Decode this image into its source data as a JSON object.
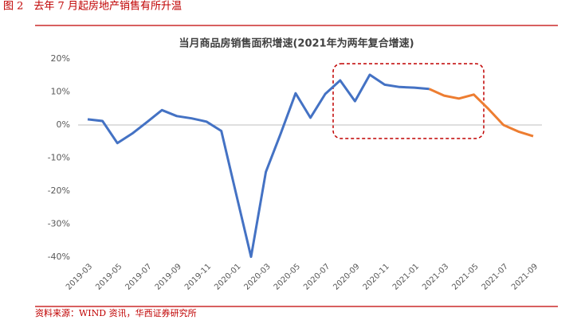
{
  "header": "图 2　去年 7 月起房地产销售有所升温",
  "source": "资料来源：WIND 资讯，华西证券研究所",
  "chart_data": {
    "type": "line",
    "title": "当月商品房销售面积增速(2021年为两年复合增速)",
    "categories": [
      "2019-03",
      null,
      "2019-05",
      null,
      "2019-07",
      null,
      "2019-09",
      null,
      "2019-11",
      null,
      "2020-01",
      null,
      "2020-03",
      null,
      "2020-05",
      null,
      "2020-07",
      null,
      "2020-09",
      null,
      "2020-11",
      null,
      "2021-01",
      null,
      "2021-03",
      null,
      "2021-05",
      null,
      "2021-07",
      null,
      "2021-09"
    ],
    "series": [
      {
        "color": "#4472c4",
        "values": [
          1.7,
          1.2,
          -5.5,
          -2.6,
          0.9,
          4.5,
          2.7,
          2.0,
          1.0,
          -1.8,
          -20.9,
          -39.9,
          -14.2,
          -2.6,
          9.6,
          2.2,
          9.4,
          13.5,
          7.2,
          15.2,
          12.2,
          11.5,
          11.3,
          10.9,
          null,
          null,
          null,
          null,
          null,
          null,
          null
        ]
      },
      {
        "color": "#ed7d31",
        "values": [
          null,
          null,
          null,
          null,
          null,
          null,
          null,
          null,
          null,
          null,
          null,
          null,
          null,
          null,
          null,
          null,
          null,
          null,
          null,
          null,
          null,
          null,
          null,
          10.9,
          8.9,
          8.0,
          9.2,
          4.8,
          0.0,
          -2.0,
          -3.4
        ]
      }
    ],
    "ylim": [
      -40,
      20
    ],
    "yticks": [
      {
        "value": 20,
        "label": "20%"
      },
      {
        "value": 10,
        "label": "10%"
      },
      {
        "value": 0,
        "label": "0%"
      },
      {
        "value": -10,
        "label": "-10%"
      },
      {
        "value": -20,
        "label": "-20%"
      },
      {
        "value": -30,
        "label": "-30%"
      },
      {
        "value": -40,
        "label": "-40%"
      }
    ],
    "grid": false
  }
}
